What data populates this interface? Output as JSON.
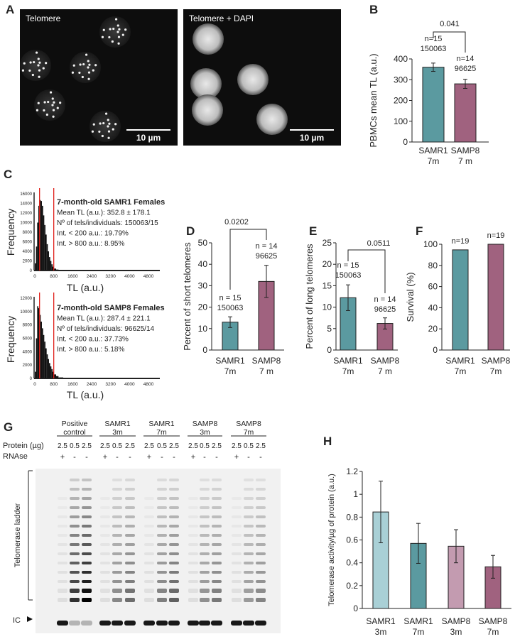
{
  "panel_labels": [
    "A",
    "B",
    "C",
    "D",
    "E",
    "F",
    "G",
    "H"
  ],
  "panel_a": {
    "images": [
      {
        "label": "Telomere",
        "scale_bar": "10 µm"
      },
      {
        "label": "Telomere + DAPI",
        "scale_bar": "10 µm"
      }
    ]
  },
  "chart_data": [
    {
      "id": "B",
      "type": "bar",
      "title": "",
      "xlabel": "",
      "ylabel": "PBMCs mean TL (a.u.)",
      "ylim": [
        0,
        400
      ],
      "yticks": [
        "0",
        "100",
        "200",
        "300",
        "400"
      ],
      "categories": [
        [
          "SAMR1",
          "7m"
        ],
        [
          "SAMP8",
          "7 m"
        ]
      ],
      "values": [
        360,
        280
      ],
      "errors": [
        20,
        22
      ],
      "annotations": [
        [
          "n=15",
          "150063"
        ],
        [
          "n=14",
          "96625"
        ]
      ],
      "pvalue": "0.041",
      "colors": [
        "#5b9aa0",
        "#a0627f"
      ]
    },
    {
      "id": "C1",
      "type": "histogram",
      "title": "7-month-old SAMR1 Females",
      "stats": [
        "Mean TL (a.u.): 352.8 ± 178.1",
        "Nº of tels/individuals: 150063/15",
        "Int. < 200 a.u.: 19.79%",
        "Int. > 800 a.u.: 8.95%"
      ],
      "xlabel": "TL (a.u.)",
      "ylabel": "Frequency",
      "xlim": [
        0,
        4800
      ],
      "ylim": [
        0,
        16000
      ],
      "xticks": [
        "0",
        "800",
        "1600",
        "2400",
        "3200",
        "4000",
        "4800"
      ],
      "yticks": [
        "0",
        "2000",
        "4000",
        "6000",
        "8000",
        "10000",
        "12000",
        "14000",
        "16000"
      ],
      "thresholds": [
        200,
        800
      ],
      "x": [
        50,
        100,
        150,
        200,
        250,
        300,
        350,
        400,
        450,
        500,
        550,
        600,
        650,
        700,
        750,
        800,
        900,
        1000,
        1200,
        1600
      ],
      "y": [
        1500,
        5000,
        10000,
        13500,
        14700,
        14500,
        13500,
        11500,
        9500,
        7500,
        5500,
        4000,
        2800,
        2000,
        1300,
        800,
        400,
        200,
        80,
        20
      ]
    },
    {
      "id": "C2",
      "type": "histogram",
      "title": "7-month-old SAMP8 Females",
      "stats": [
        "Mean TL (a.u.): 287.4 ± 221.1",
        "Nº of tels/individuals: 96625/14",
        "Int. < 200 a.u.: 37.73%",
        "Int. > 800 a.u.: 5.18%"
      ],
      "xlabel": "TL (a.u.)",
      "ylabel": "Frequency",
      "xlim": [
        0,
        4800
      ],
      "ylim": [
        0,
        12000
      ],
      "xticks": [
        "0",
        "800",
        "1600",
        "2400",
        "3200",
        "4000",
        "4800"
      ],
      "yticks": [
        "0",
        "2000",
        "4000",
        "6000",
        "8000",
        "10000",
        "12000"
      ],
      "thresholds": [
        200,
        800
      ],
      "x": [
        50,
        100,
        150,
        200,
        250,
        300,
        350,
        400,
        450,
        500,
        550,
        600,
        650,
        700,
        750,
        800,
        900,
        1000,
        1200,
        1600
      ],
      "y": [
        1000,
        6000,
        10800,
        10500,
        9500,
        8500,
        7500,
        6500,
        5500,
        4500,
        3600,
        2900,
        2300,
        1800,
        1400,
        1000,
        600,
        350,
        150,
        40
      ]
    },
    {
      "id": "D",
      "type": "bar",
      "ylabel": "Percent of short telomeres",
      "ylim": [
        0,
        50
      ],
      "yticks": [
        "0",
        "10",
        "20",
        "30",
        "40",
        "50"
      ],
      "categories": [
        [
          "SAMR1",
          "7m"
        ],
        [
          "SAMP8",
          "7 m"
        ]
      ],
      "values": [
        13,
        32
      ],
      "errors": [
        2.5,
        7.5
      ],
      "annotations": [
        [
          "n = 15",
          "150063"
        ],
        [
          "n = 14",
          "96625"
        ]
      ],
      "pvalue": "0.0202",
      "colors": [
        "#5b9aa0",
        "#a0627f"
      ]
    },
    {
      "id": "E",
      "type": "bar",
      "ylabel": "Percent of long telomeres",
      "ylim": [
        0,
        25
      ],
      "yticks": [
        "0",
        "5",
        "10",
        "15",
        "20",
        "25"
      ],
      "categories": [
        [
          "SAMR1",
          "7m"
        ],
        [
          "SAMP8",
          "7 m"
        ]
      ],
      "values": [
        12.2,
        6.2
      ],
      "errors": [
        3,
        1.3
      ],
      "annotations": [
        [
          "n = 15",
          "150063"
        ],
        [
          "n = 14",
          "96625"
        ]
      ],
      "pvalue": "0.0511",
      "colors": [
        "#5b9aa0",
        "#a0627f"
      ]
    },
    {
      "id": "F",
      "type": "bar",
      "ylabel": "Survival  (%)",
      "ylim": [
        0,
        100
      ],
      "yticks": [
        "0",
        "20",
        "40",
        "60",
        "80",
        "100"
      ],
      "categories": [
        [
          "SAMR1",
          "7m"
        ],
        [
          "SAMP8",
          "7m"
        ]
      ],
      "values": [
        94.7,
        100
      ],
      "errors": [
        0,
        0
      ],
      "annotations": [
        [
          "n=19"
        ],
        [
          "n=19"
        ]
      ],
      "pvalue": "",
      "colors": [
        "#5b9aa0",
        "#a0627f"
      ]
    },
    {
      "id": "H",
      "type": "bar",
      "ylabel": "Telomerase activity/µg of protein (a.u.)",
      "ylim": [
        0,
        1.2
      ],
      "yticks": [
        "0",
        "0.2",
        "0.4",
        "0.6",
        "0.8",
        "1",
        "1.2"
      ],
      "categories": [
        [
          "SAMR1",
          "3m"
        ],
        [
          "SAMR1",
          "7m"
        ],
        [
          "SAMP8",
          "3m"
        ],
        [
          "SAMP8",
          "7m"
        ]
      ],
      "values": [
        0.845,
        0.57,
        0.545,
        0.365
      ],
      "errors": [
        0.27,
        0.175,
        0.145,
        0.1
      ],
      "annotations": [],
      "pvalue": "",
      "colors": [
        "#a9d0d6",
        "#5b9aa0",
        "#c39bb0",
        "#a0627f"
      ]
    }
  ],
  "panel_g": {
    "groups": [
      [
        "Positive",
        "control"
      ],
      [
        "SAMR1",
        "3m"
      ],
      [
        "SAMR1",
        "7m"
      ],
      [
        "SAMP8",
        "3m"
      ],
      [
        "SAMP8",
        "7m"
      ]
    ],
    "protein_label": "Protein (µg)",
    "rnase_label": "RNAse",
    "protein_values": [
      "2.5",
      "0.5",
      "2.5"
    ],
    "rnase_values": [
      "+",
      "-",
      "-"
    ],
    "ladder_label": "Telomerase ladder",
    "ic_label": "IC"
  }
}
